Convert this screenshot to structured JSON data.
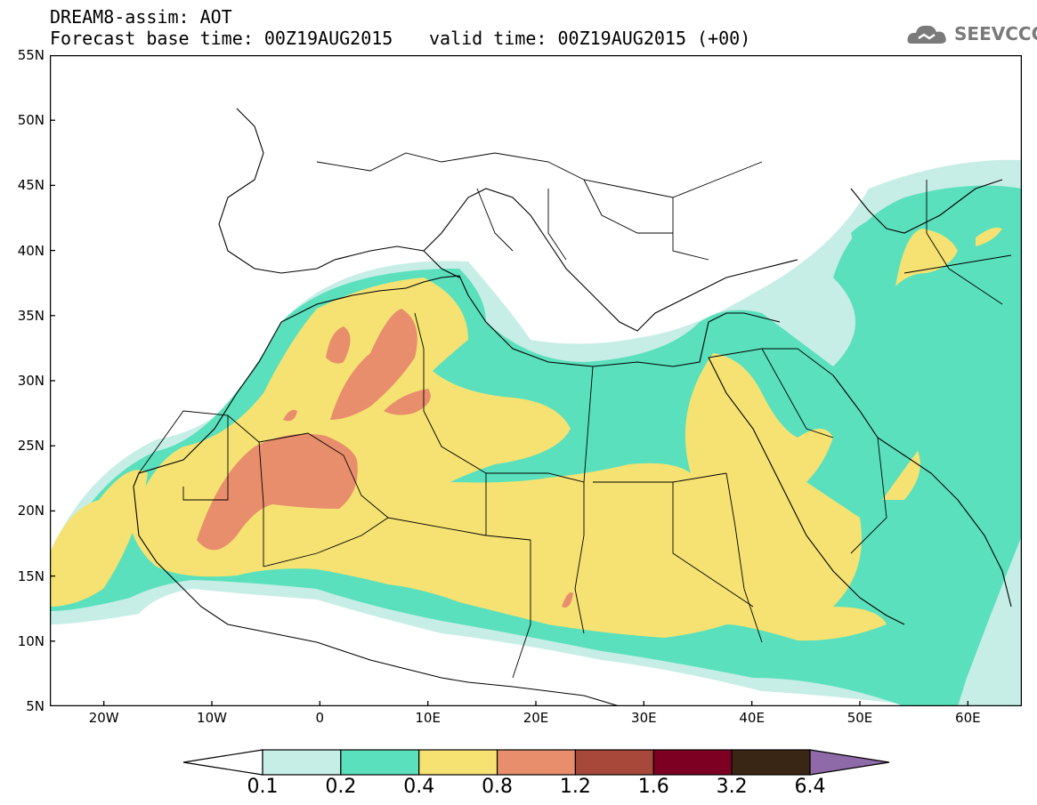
{
  "header": {
    "title": "DREAM8-assim: AOT",
    "base_time": "Forecast base time: 00Z19AUG2015",
    "valid_time": "valid time: 00Z19AUG2015 (+00)"
  },
  "logo": {
    "text": "SEEVCCC",
    "icon": "cloud-logo-icon",
    "color": "#7a7a7a"
  },
  "map": {
    "lon_range": [
      -25,
      65
    ],
    "lat_range": [
      5,
      55
    ],
    "y_ticks": [
      "55N",
      "50N",
      "45N",
      "40N",
      "35N",
      "30N",
      "25N",
      "20N",
      "15N",
      "10N",
      "5N"
    ],
    "x_ticks": [
      "20W",
      "10W",
      "0",
      "10E",
      "20E",
      "30E",
      "40E",
      "50E",
      "60E"
    ]
  },
  "colorbar": {
    "labels": [
      "0.1",
      "0.2",
      "0.4",
      "0.8",
      "1.2",
      "1.6",
      "3.2",
      "6.4"
    ],
    "colors": [
      "#ffffff",
      "#c6ede6",
      "#5ae0bc",
      "#f5e273",
      "#e88e6c",
      "#a8483a",
      "#7d0022",
      "#3a2614",
      "#8e6aa8"
    ]
  }
}
